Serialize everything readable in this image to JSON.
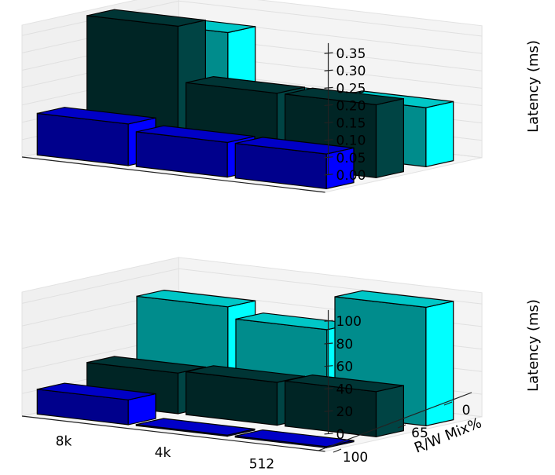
{
  "chart_data": [
    {
      "type": "bar3d",
      "title": "",
      "zlabel": "Latency (ms)",
      "zlim": [
        0,
        0.38
      ],
      "zticks": [
        "0.00",
        "0.05",
        "0.10",
        "0.15",
        "0.20",
        "0.25",
        "0.30",
        "0.35"
      ],
      "block_sizes": [
        "8k",
        "4k",
        "512"
      ],
      "rw_mix": [
        "0",
        "65",
        "100"
      ],
      "grid": true,
      "series": [
        {
          "rw_mix": "0",
          "color": "#00ffff",
          "values": [
            0.32,
            0.16,
            0.17
          ]
        },
        {
          "rw_mix": "65",
          "color": "#004444",
          "values": [
            0.37,
            0.21,
            0.21
          ]
        },
        {
          "rw_mix": "100",
          "color": "#0000ff",
          "values": [
            0.12,
            0.1,
            0.1
          ]
        }
      ]
    },
    {
      "type": "bar3d",
      "title": "",
      "zlabel": "Latency (ms)",
      "zlim": [
        0,
        110
      ],
      "zticks": [
        "0",
        "20",
        "40",
        "60",
        "80",
        "100"
      ],
      "xlabel": "",
      "ylabel": "R/W Mix%",
      "block_sizes": [
        "8k",
        "4k",
        "512"
      ],
      "rw_mix": [
        "0",
        "65",
        "100"
      ],
      "grid": true,
      "series": [
        {
          "rw_mix": "0",
          "color": "#00ffff",
          "values": [
            85,
            75,
            105
          ]
        },
        {
          "rw_mix": "65",
          "color": "#004444",
          "values": [
            36,
            38,
            40
          ]
        },
        {
          "rw_mix": "100",
          "color": "#0000ff",
          "values": [
            22,
            1,
            1
          ]
        }
      ]
    }
  ]
}
